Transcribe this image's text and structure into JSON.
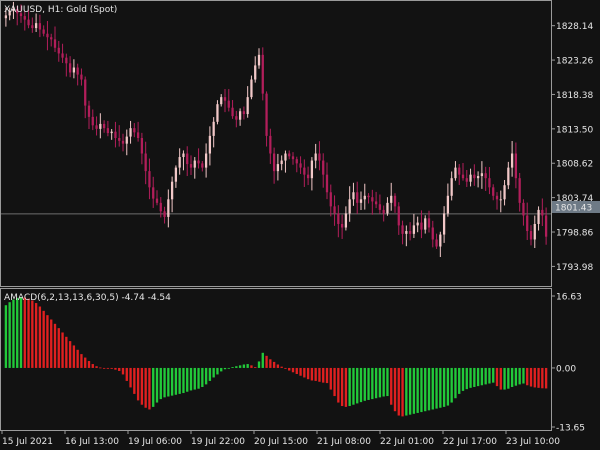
{
  "header": {
    "symbol": "XAUUSD",
    "timeframe": "H1",
    "description": "Gold (Spot)",
    "title": "XAUUSD, H1:  Gold (Spot)"
  },
  "indicator": {
    "name": "AMACD(6,2,13,13,6,30,5)",
    "value1": "-4.74",
    "value2": "-4.54",
    "label": "AMACD(6,2,13,13,6,30,5) -4.74 -4.54"
  },
  "current_price": "1801.43",
  "colors": {
    "background": "#121212",
    "grid": "#4a4a4a",
    "bull_candle": "#f2c8c8",
    "bear_candle": "#b21e5a",
    "hist_up": "#22c93a",
    "hist_down": "#e02020",
    "price_tag_bg": "#6e7a86"
  },
  "chart_data": [
    {
      "type": "candlestick",
      "title": "XAUUSD, H1:  Gold (Spot)",
      "yticks": [
        "1828.14",
        "1823.26",
        "1818.38",
        "1813.50",
        "1808.62",
        "1803.74",
        "1798.86",
        "1793.98"
      ],
      "ylim": [
        1791.2,
        1831.5
      ],
      "current_price": 1801.43,
      "close_series": [
        1829.6,
        1830.2,
        1830.5,
        1829.9,
        1829.5,
        1829.0,
        1828.2,
        1827.8,
        1828.5,
        1827.6,
        1827.0,
        1826.5,
        1826.2,
        1825.0,
        1824.2,
        1823.6,
        1822.8,
        1821.5,
        1822.2,
        1821.2,
        1820.5,
        1816.8,
        1815.2,
        1814.0,
        1813.5,
        1814.2,
        1813.6,
        1812.9,
        1813.1,
        1812.2,
        1811.8,
        1811.4,
        1812.4,
        1813.6,
        1813.0,
        1812.2,
        1810.0,
        1807.5,
        1805.2,
        1803.6,
        1803.0,
        1801.8,
        1801.0,
        1803.5,
        1806.0,
        1808.0,
        1809.5,
        1810.0,
        1808.5,
        1808.0,
        1809.0,
        1808.6,
        1808.0,
        1810.0,
        1812.5,
        1814.5,
        1817.0,
        1818.0,
        1817.5,
        1816.5,
        1815.3,
        1814.8,
        1816.0,
        1815.6,
        1818.0,
        1820.5,
        1822.5,
        1824.0,
        1818.5,
        1812.5,
        1810.0,
        1807.5,
        1808.5,
        1809.0,
        1810.0,
        1809.6,
        1809.2,
        1808.6,
        1808.0,
        1807.0,
        1806.5,
        1809.0,
        1810.0,
        1809.0,
        1807.0,
        1804.5,
        1802.5,
        1801.5,
        1800.0,
        1799.5,
        1801.5,
        1803.5,
        1804.5,
        1803.0,
        1803.5,
        1804.0,
        1803.8,
        1803.2,
        1802.8,
        1802.0,
        1801.5,
        1803.0,
        1804.0,
        1802.5,
        1799.8,
        1798.6,
        1799.0,
        1798.6,
        1799.8,
        1800.2,
        1799.2,
        1800.8,
        1799.5,
        1797.8,
        1796.8,
        1798.5,
        1801.5,
        1804.0,
        1806.5,
        1808.0,
        1807.0,
        1806.5,
        1806.0,
        1807.0,
        1806.5,
        1806.8,
        1807.2,
        1806.5,
        1805.2,
        1804.0,
        1803.5,
        1803.5,
        1805.5,
        1808.0,
        1810.0,
        1806.5,
        1803.0,
        1801.2,
        1799.0,
        1797.8,
        1800.0,
        1802.0,
        1801.2,
        1798.2
      ],
      "xticks": [
        "15 Jul 2021",
        "16 Jul 13:00",
        "19 Jul 06:00",
        "19 Jul 22:00",
        "20 Jul 15:00",
        "21 Jul 08:00",
        "22 Jul 01:00",
        "22 Jul 17:00",
        "23 Jul 10:00"
      ]
    },
    {
      "type": "bar",
      "title": "AMACD(6,2,13,13,6,30,5) -4.74 -4.54",
      "yticks": [
        "16.63",
        "0.00",
        "-13.65"
      ],
      "ylim": [
        -13.65,
        16.63
      ],
      "values": [
        14.5,
        15.2,
        15.8,
        16.2,
        16.4,
        16.3,
        16.0,
        15.6,
        15.0,
        14.2,
        13.2,
        12.2,
        11.2,
        10.2,
        9.2,
        8.2,
        7.2,
        6.2,
        5.2,
        4.2,
        3.2,
        2.4,
        1.6,
        0.9,
        0.4,
        0.1,
        -0.05,
        -0.1,
        -0.2,
        -0.4,
        -0.7,
        -1.5,
        -3.0,
        -4.5,
        -6.0,
        -7.5,
        -8.5,
        -9.2,
        -9.6,
        -9.0,
        -8.0,
        -7.2,
        -6.8,
        -6.6,
        -6.4,
        -6.2,
        -6.0,
        -5.8,
        -5.5,
        -5.2,
        -5.0,
        -4.8,
        -4.4,
        -3.8,
        -3.0,
        -2.2,
        -1.5,
        -0.8,
        -0.3,
        0.0,
        0.2,
        0.4,
        0.6,
        0.8,
        0.9,
        0.6,
        0.2,
        1.5,
        3.5,
        2.8,
        2.0,
        1.4,
        0.8,
        0.3,
        -0.2,
        -0.6,
        -1.0,
        -1.4,
        -1.8,
        -2.2,
        -2.6,
        -2.9,
        -3.0,
        -3.2,
        -3.4,
        -3.5,
        -5.0,
        -6.5,
        -8.0,
        -8.8,
        -9.0,
        -8.8,
        -8.5,
        -8.2,
        -7.9,
        -7.6,
        -7.4,
        -7.2,
        -7.0,
        -6.8,
        -6.6,
        -6.5,
        -8.5,
        -10.0,
        -11.0,
        -11.2,
        -11.0,
        -10.8,
        -10.6,
        -10.4,
        -10.2,
        -10.0,
        -9.8,
        -9.6,
        -9.4,
        -9.2,
        -9.0,
        -8.7,
        -8.0,
        -7.0,
        -6.0,
        -5.3,
        -4.9,
        -4.6,
        -4.4,
        -4.2,
        -4.0,
        -3.8,
        -3.6,
        -3.4,
        -4.2,
        -5.0,
        -5.0,
        -4.8,
        -4.4,
        -4.1,
        -3.8,
        -3.6,
        -4.0,
        -4.3,
        -4.5,
        -4.6,
        -4.7,
        -4.74
      ]
    }
  ]
}
